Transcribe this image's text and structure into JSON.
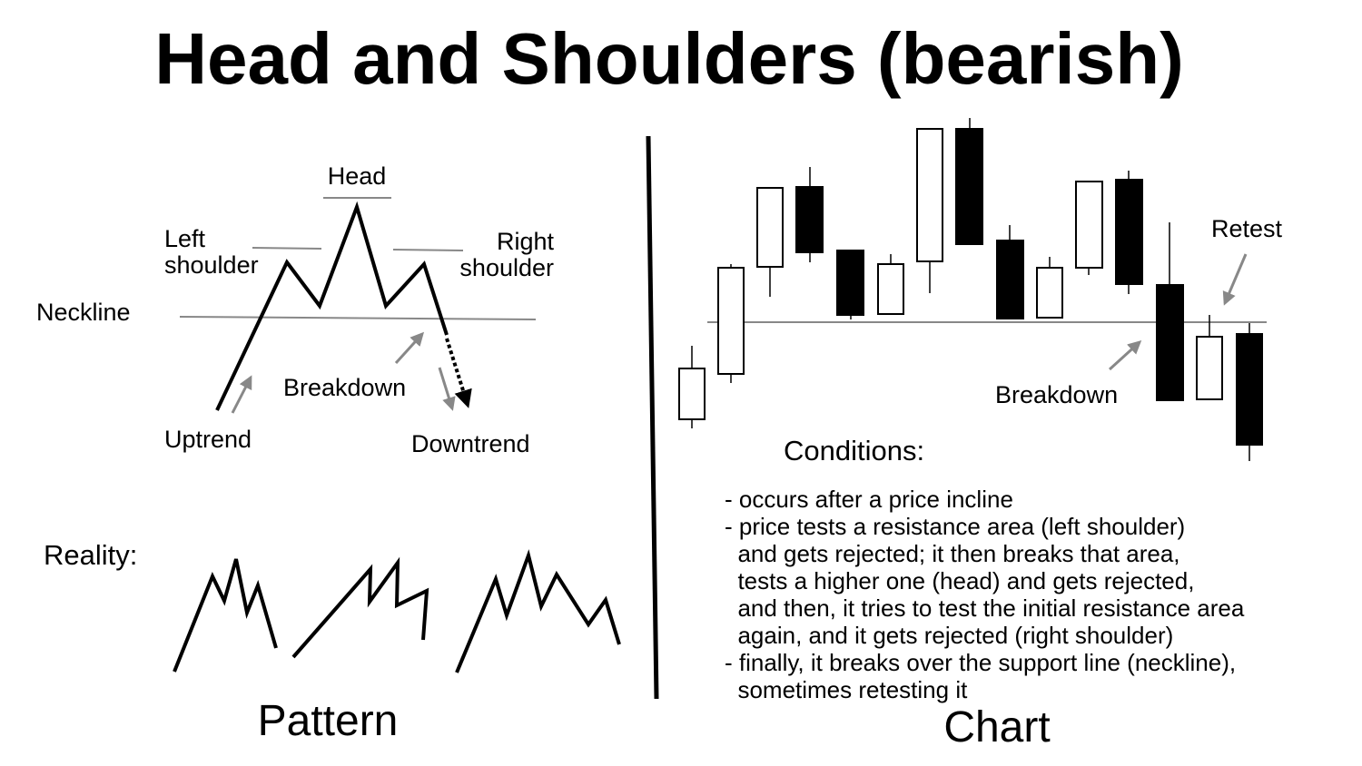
{
  "title": "Head and Shoulders (bearish)",
  "pattern": {
    "caption": "Pattern",
    "labels": {
      "head": "Head",
      "left_shoulder": [
        "Left",
        "shoulder"
      ],
      "right_shoulder": [
        "Right",
        "shoulder"
      ],
      "neckline": "Neckline",
      "breakdown": "Breakdown",
      "uptrend": "Uptrend",
      "downtrend": "Downtrend"
    },
    "reality_label": "Reality:"
  },
  "chart": {
    "caption": "Chart",
    "labels": {
      "retest": "Retest",
      "breakdown": "Breakdown"
    },
    "conditions_title": "Conditions:",
    "conditions_lines": [
      "- occurs after a price incline",
      "- price tests a resistance area (left shoulder)",
      "  and gets rejected; it then breaks that area,",
      "  tests a higher one (head) and gets rejected,",
      "  and then, it tries to test the initial resistance area",
      "  again, and it gets rejected (right shoulder)",
      "- finally, it breaks over the support line (neckline),",
      "  sometimes retesting it"
    ]
  },
  "colors": {
    "ink": "#000000",
    "guide": "#888888",
    "bullish_fill": "#ffffff",
    "bearish_fill": "#000000"
  }
}
